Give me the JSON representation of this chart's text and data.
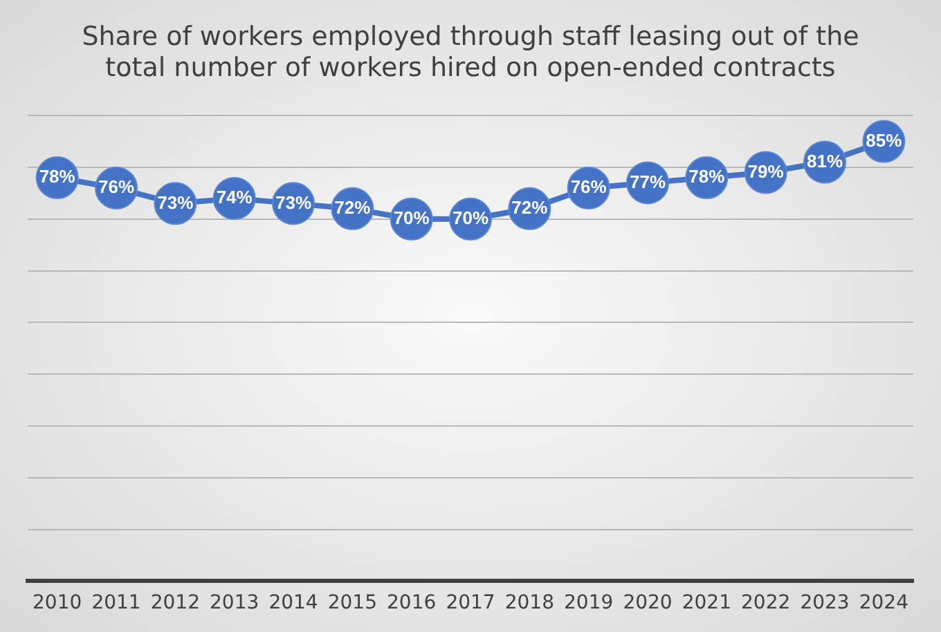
{
  "chart_data": {
    "type": "line",
    "title": "Share of workers employed through staff leasing out of the total number of workers hired on open-ended contracts",
    "categories": [
      "2010",
      "2011",
      "2012",
      "2013",
      "2014",
      "2015",
      "2016",
      "2017",
      "2018",
      "2019",
      "2020",
      "2021",
      "2022",
      "2023",
      "2024"
    ],
    "series": [
      {
        "color": "#4472c4",
        "values": [
          78,
          76,
          73,
          74,
          73,
          72,
          70,
          70,
          72,
          76,
          77,
          78,
          79,
          81,
          85
        ],
        "value_labels": [
          "78%",
          "76%",
          "73%",
          "74%",
          "73%",
          "72%",
          "70%",
          "70%",
          "72%",
          "76%",
          "77%",
          "78%",
          "79%",
          "81%",
          "85%"
        ]
      }
    ],
    "ylim": [
      0,
      90
    ],
    "yticks": [
      {
        "value": 0,
        "label": null
      },
      {
        "value": 10,
        "label": null
      },
      {
        "value": 20,
        "label": null
      },
      {
        "value": 30,
        "label": null
      },
      {
        "value": 40,
        "label": null
      },
      {
        "value": 50,
        "label": null
      },
      {
        "value": 60,
        "label": null
      },
      {
        "value": 70,
        "label": null
      },
      {
        "value": 80,
        "label": null
      },
      {
        "value": 90,
        "label": null
      }
    ],
    "tick_labels": "x",
    "grid": "y",
    "legend": false,
    "marker": "circle",
    "line_style": "solid"
  }
}
